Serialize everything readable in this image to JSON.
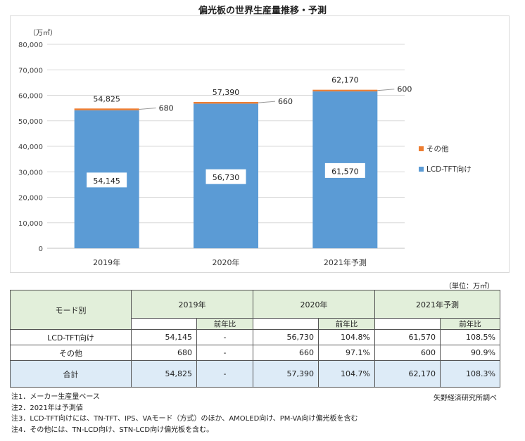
{
  "title": "偏光板の世界生産量推移・予測",
  "chart_data": {
    "type": "bar",
    "stacked": true,
    "unit_label": "（万㎡）",
    "categories": [
      "2019年",
      "2020年",
      "2021年予測"
    ],
    "ylim": [
      0,
      80000
    ],
    "yticks": [
      "0",
      "10,000",
      "20,000",
      "30,000",
      "40,000",
      "50,000",
      "60,000",
      "70,000",
      "80,000"
    ],
    "grid": true,
    "legend_position": "right",
    "series": [
      {
        "name": "LCD-TFT向け",
        "color": "#5b9bd5",
        "values": [
          54145,
          56730,
          61570
        ],
        "labels": [
          "54,145",
          "56,730",
          "61,570"
        ]
      },
      {
        "name": "その他",
        "color": "#ed7d31",
        "values": [
          680,
          660,
          600
        ],
        "labels": [
          "680",
          "660",
          "600"
        ]
      }
    ],
    "totals": [
      "54,825",
      "57,390",
      "62,170"
    ]
  },
  "table": {
    "unit_note": "（単位：万㎡）",
    "header_label": "モード別",
    "years": [
      "2019年",
      "2020年",
      "2021年予測"
    ],
    "yoy_label": "前年比",
    "rows": [
      {
        "label": "LCD-TFT向け",
        "cells": [
          "54,145",
          "-",
          "56,730",
          "104.8%",
          "61,570",
          "108.5%"
        ]
      },
      {
        "label": "その他",
        "cells": [
          "680",
          "-",
          "660",
          "97.1%",
          "600",
          "90.9%"
        ]
      }
    ],
    "total_row": {
      "label": "合計",
      "cells": [
        "54,825",
        "-",
        "57,390",
        "104.7%",
        "62,170",
        "108.3%"
      ]
    }
  },
  "notes": [
    "注1．メーカー生産量ベース",
    "注2．2021年は予測値",
    "注3．LCD-TFT向けには、TN-TFT、IPS、VAモード（方式）のほか、AMOLED向け、PM-VA向け偏光板を含む",
    "注4．その他には、TN-LCD向け、STN-LCD向け偏光板を含む。"
  ],
  "credit": "矢野経済研究所調べ"
}
